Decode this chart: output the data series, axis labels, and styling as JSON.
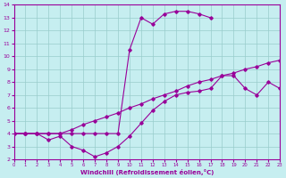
{
  "xlabel": "Windchill (Refroidissement éolien,°C)",
  "xlim": [
    0,
    23
  ],
  "ylim": [
    2,
    14
  ],
  "yticks": [
    2,
    3,
    4,
    5,
    6,
    7,
    8,
    9,
    10,
    11,
    12,
    13,
    14
  ],
  "xticks": [
    0,
    1,
    2,
    3,
    4,
    5,
    6,
    7,
    8,
    9,
    10,
    11,
    12,
    13,
    14,
    15,
    16,
    17,
    18,
    19,
    20,
    21,
    22,
    23
  ],
  "bg_color": "#c6eef0",
  "line_color": "#990099",
  "grid_color": "#99cccc",
  "line1_x": [
    0,
    1,
    2,
    3,
    4,
    5,
    6,
    7,
    8,
    9,
    10,
    11,
    12,
    13,
    14,
    15,
    16,
    17,
    18,
    19,
    20,
    21,
    22,
    23
  ],
  "line1_y": [
    4.0,
    4.0,
    4.0,
    4.0,
    4.0,
    4.3,
    4.7,
    5.0,
    5.3,
    5.6,
    6.0,
    6.3,
    6.7,
    7.0,
    7.3,
    7.7,
    8.0,
    8.2,
    8.5,
    8.7,
    9.0,
    9.2,
    9.5,
    9.7
  ],
  "line2_x": [
    0,
    1,
    2,
    3,
    4,
    5,
    6,
    7,
    8,
    9,
    10,
    11,
    12,
    13,
    14,
    15,
    16,
    17,
    18,
    19,
    20,
    21,
    22,
    23
  ],
  "line2_y": [
    4.0,
    4.0,
    4.0,
    3.5,
    3.8,
    3.0,
    2.7,
    2.2,
    2.5,
    3.0,
    3.8,
    4.8,
    5.8,
    6.5,
    7.0,
    7.2,
    7.3,
    7.5,
    8.5,
    8.5,
    7.5,
    7.0,
    8.0,
    7.5
  ],
  "line3_x": [
    0,
    1,
    2,
    3,
    4,
    5,
    6,
    7,
    8,
    9,
    10,
    11,
    12,
    13,
    14,
    15,
    16,
    17
  ],
  "line3_y": [
    4.0,
    4.0,
    4.0,
    4.0,
    4.0,
    4.0,
    4.0,
    4.0,
    4.0,
    4.0,
    10.5,
    13.0,
    12.5,
    13.3,
    13.5,
    13.5,
    13.3,
    13.0
  ]
}
